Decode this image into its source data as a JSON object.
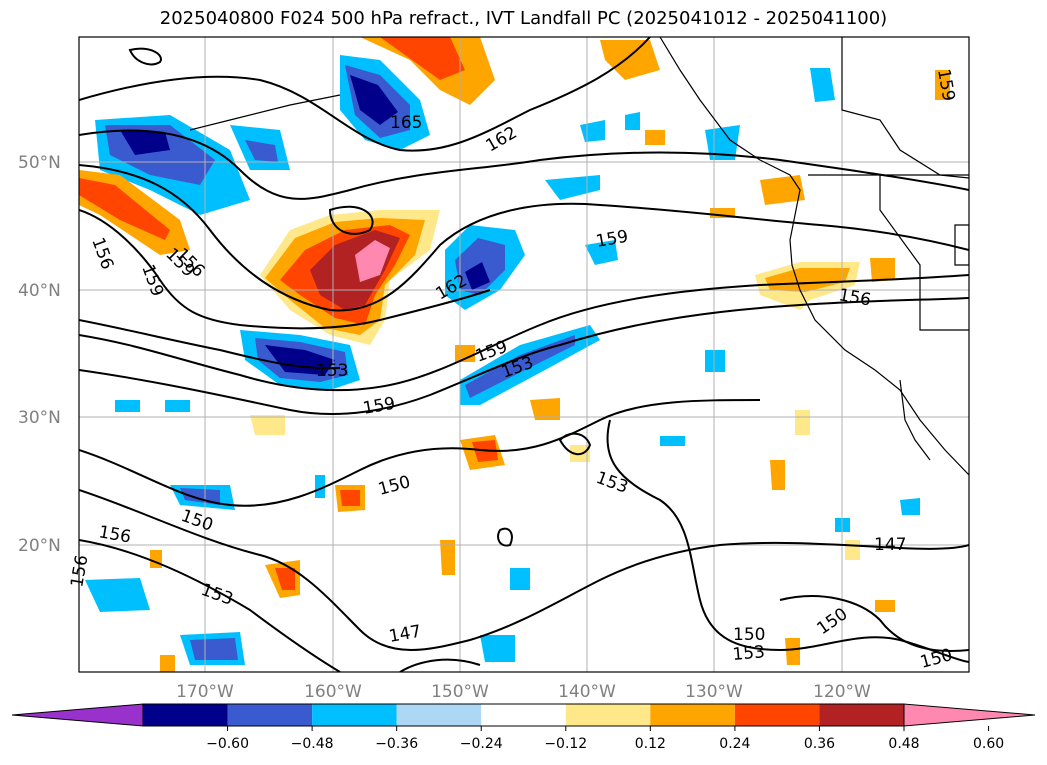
{
  "title": "2025040800 F024 500 hPa refract., IVT Landfall PC (2025041012 - 2025041100)",
  "lat_labels": [
    "50°N",
    "40°N",
    "30°N",
    "20°N"
  ],
  "lon_labels": [
    "170°W",
    "160°W",
    "150°W",
    "140°W",
    "130°W",
    "120°W"
  ],
  "contour_labels": [
    {
      "text": "165"
    },
    {
      "text": "162"
    },
    {
      "text": "159"
    },
    {
      "text": "156"
    },
    {
      "text": "159"
    },
    {
      "text": "156"
    },
    {
      "text": "159"
    },
    {
      "text": "162"
    },
    {
      "text": "156"
    },
    {
      "text": "159"
    },
    {
      "text": "153"
    },
    {
      "text": "153"
    },
    {
      "text": "159"
    },
    {
      "text": "150"
    },
    {
      "text": "153"
    },
    {
      "text": "150"
    },
    {
      "text": "156"
    },
    {
      "text": "153"
    },
    {
      "text": "147"
    },
    {
      "text": "147"
    },
    {
      "text": "150"
    },
    {
      "text": "150"
    },
    {
      "text": "153"
    },
    {
      "text": "150"
    },
    {
      "text": "156"
    },
    {
      "text": "159"
    }
  ],
  "colorbar": {
    "ticks": [
      "−0.60",
      "−0.48",
      "−0.36",
      "−0.24",
      "−0.12",
      "0.12",
      "0.24",
      "0.36",
      "0.48",
      "0.60"
    ],
    "colors": [
      "#9932cc",
      "#00008b",
      "#3a5bd0",
      "#00bfff",
      "#add8f5",
      "#ffffff",
      "#ffe88a",
      "#ffa500",
      "#ff4500",
      "#b22222",
      "#ff88b0"
    ]
  }
}
